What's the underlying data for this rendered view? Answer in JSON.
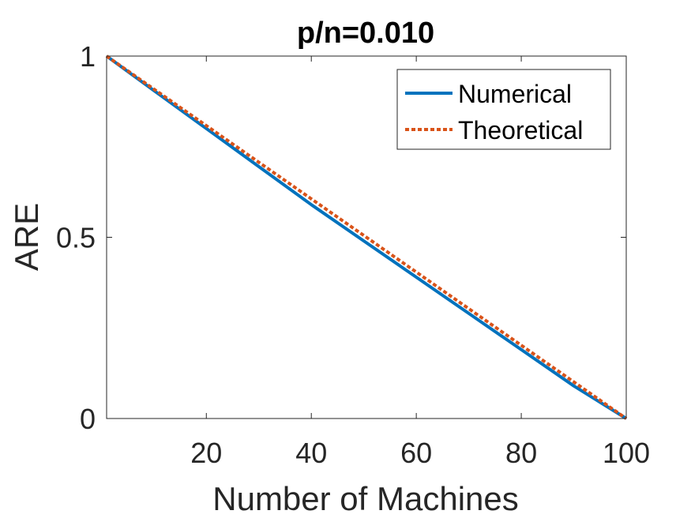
{
  "chart_data": {
    "type": "line",
    "title": "p/n=0.010",
    "xlabel": "Number of Machines",
    "ylabel": "ARE",
    "xlim": [
      1,
      100
    ],
    "ylim": [
      0,
      1
    ],
    "xticks": [
      20,
      40,
      60,
      80,
      100
    ],
    "yticks": [
      0,
      0.5,
      1
    ],
    "xtick_labels": [
      "20",
      "40",
      "60",
      "80",
      "100"
    ],
    "ytick_labels": [
      "0",
      "0.5",
      "1"
    ],
    "grid": false,
    "legend_position": "top-right",
    "series": [
      {
        "name": "Numerical",
        "color": "#0072BD",
        "style": "solid",
        "x": [
          1,
          10,
          20,
          30,
          40,
          50,
          60,
          70,
          80,
          90,
          100
        ],
        "y": [
          1.0,
          0.905,
          0.8,
          0.695,
          0.59,
          0.49,
          0.39,
          0.29,
          0.19,
          0.09,
          0.0
        ]
      },
      {
        "name": "Theoretical",
        "color": "#D95319",
        "style": "dotted",
        "x": [
          1,
          10,
          20,
          30,
          40,
          50,
          60,
          70,
          80,
          90,
          100
        ],
        "y": [
          1.0,
          0.909,
          0.808,
          0.707,
          0.606,
          0.505,
          0.404,
          0.303,
          0.202,
          0.101,
          0.0
        ]
      }
    ]
  }
}
